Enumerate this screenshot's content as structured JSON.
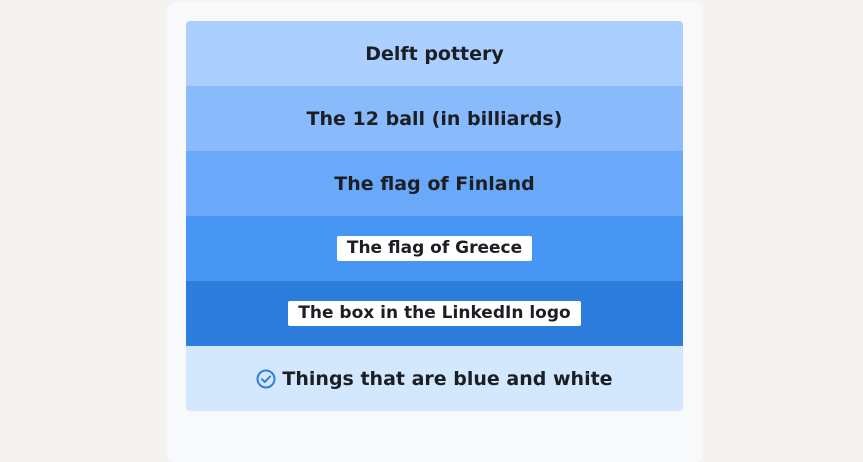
{
  "puzzle": {
    "rows": [
      {
        "label": "Delft pottery",
        "color": "#abcfff",
        "boxed": false
      },
      {
        "label": "The 12 ball (in billiards)",
        "color": "#89bafc",
        "boxed": false
      },
      {
        "label": "The flag of Finland",
        "color": "#6aa9f9",
        "boxed": false
      },
      {
        "label": "The flag of Greece",
        "color": "#4796f3",
        "boxed": true
      },
      {
        "label": "The box in the LinkedIn logo",
        "color": "#2d7ddf",
        "boxed": true
      }
    ],
    "result": {
      "label": "Things that are blue and white",
      "color": "#d3e8fd",
      "icon": "check-circle-icon",
      "icon_color": "#2d7ddf"
    }
  }
}
